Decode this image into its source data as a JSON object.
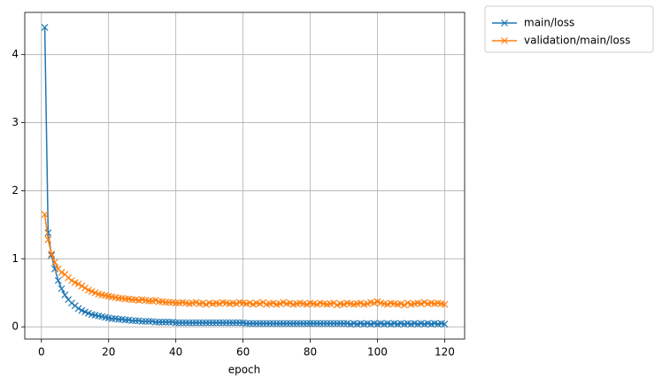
{
  "chart_data": {
    "type": "line",
    "xlabel": "epoch",
    "x": [
      1,
      2,
      3,
      4,
      5,
      6,
      7,
      8,
      9,
      10,
      11,
      12,
      13,
      14,
      15,
      16,
      17,
      18,
      19,
      20,
      21,
      22,
      23,
      24,
      25,
      26,
      27,
      28,
      29,
      30,
      31,
      32,
      33,
      34,
      35,
      36,
      37,
      38,
      39,
      40,
      41,
      42,
      43,
      44,
      45,
      46,
      47,
      48,
      49,
      50,
      51,
      52,
      53,
      54,
      55,
      56,
      57,
      58,
      59,
      60,
      61,
      62,
      63,
      64,
      65,
      66,
      67,
      68,
      69,
      70,
      71,
      72,
      73,
      74,
      75,
      76,
      77,
      78,
      79,
      80,
      81,
      82,
      83,
      84,
      85,
      86,
      87,
      88,
      89,
      90,
      91,
      92,
      93,
      94,
      95,
      96,
      97,
      98,
      99,
      100,
      101,
      102,
      103,
      104,
      105,
      106,
      107,
      108,
      109,
      110,
      111,
      112,
      113,
      114,
      115,
      116,
      117,
      118,
      119,
      120
    ],
    "series": [
      {
        "name": "main/loss",
        "color": "#1f77b4",
        "values": [
          4.4,
          1.38,
          1.05,
          0.85,
          0.68,
          0.56,
          0.47,
          0.4,
          0.35,
          0.31,
          0.27,
          0.24,
          0.22,
          0.2,
          0.18,
          0.17,
          0.16,
          0.15,
          0.14,
          0.13,
          0.12,
          0.12,
          0.11,
          0.11,
          0.1,
          0.1,
          0.09,
          0.09,
          0.09,
          0.08,
          0.08,
          0.08,
          0.08,
          0.07,
          0.07,
          0.07,
          0.07,
          0.07,
          0.07,
          0.06,
          0.06,
          0.06,
          0.06,
          0.06,
          0.06,
          0.06,
          0.06,
          0.06,
          0.06,
          0.06,
          0.06,
          0.06,
          0.06,
          0.06,
          0.06,
          0.06,
          0.06,
          0.06,
          0.06,
          0.06,
          0.05,
          0.05,
          0.05,
          0.05,
          0.05,
          0.05,
          0.05,
          0.05,
          0.05,
          0.05,
          0.05,
          0.05,
          0.05,
          0.05,
          0.05,
          0.05,
          0.05,
          0.05,
          0.05,
          0.05,
          0.05,
          0.05,
          0.05,
          0.05,
          0.05,
          0.05,
          0.05,
          0.05,
          0.05,
          0.05,
          0.05,
          0.04,
          0.05,
          0.04,
          0.05,
          0.04,
          0.05,
          0.04,
          0.05,
          0.04,
          0.05,
          0.04,
          0.05,
          0.04,
          0.05,
          0.04,
          0.05,
          0.04,
          0.05,
          0.04,
          0.05,
          0.04,
          0.05,
          0.04,
          0.05,
          0.04,
          0.05,
          0.04,
          0.05,
          0.04
        ]
      },
      {
        "name": "validation/main/loss",
        "color": "#ff7f0e",
        "values": [
          1.65,
          1.28,
          1.07,
          0.95,
          0.85,
          0.8,
          0.77,
          0.72,
          0.68,
          0.65,
          0.63,
          0.6,
          0.57,
          0.54,
          0.52,
          0.5,
          0.48,
          0.47,
          0.46,
          0.45,
          0.44,
          0.43,
          0.42,
          0.42,
          0.41,
          0.41,
          0.4,
          0.4,
          0.39,
          0.4,
          0.39,
          0.38,
          0.38,
          0.39,
          0.37,
          0.37,
          0.36,
          0.36,
          0.36,
          0.35,
          0.35,
          0.36,
          0.35,
          0.34,
          0.35,
          0.36,
          0.34,
          0.35,
          0.33,
          0.35,
          0.34,
          0.35,
          0.34,
          0.36,
          0.35,
          0.34,
          0.35,
          0.34,
          0.36,
          0.35,
          0.34,
          0.35,
          0.33,
          0.35,
          0.34,
          0.36,
          0.33,
          0.34,
          0.35,
          0.33,
          0.34,
          0.36,
          0.34,
          0.35,
          0.33,
          0.34,
          0.35,
          0.34,
          0.33,
          0.35,
          0.34,
          0.33,
          0.35,
          0.34,
          0.33,
          0.34,
          0.35,
          0.32,
          0.34,
          0.33,
          0.35,
          0.34,
          0.33,
          0.34,
          0.35,
          0.33,
          0.34,
          0.36,
          0.35,
          0.37,
          0.35,
          0.34,
          0.33,
          0.35,
          0.34,
          0.33,
          0.34,
          0.32,
          0.35,
          0.33,
          0.34,
          0.35,
          0.34,
          0.36,
          0.34,
          0.35,
          0.34,
          0.35,
          0.34,
          0.33
        ]
      }
    ],
    "xlim": [
      -4.95,
      125.95
    ],
    "xticks": [
      0,
      20,
      40,
      60,
      80,
      100,
      120
    ],
    "ylim": [
      -0.18,
      4.62
    ],
    "yticks": [
      0,
      1,
      2,
      3,
      4
    ],
    "grid": true,
    "legend": "outside-upper-right",
    "marker": "x"
  }
}
